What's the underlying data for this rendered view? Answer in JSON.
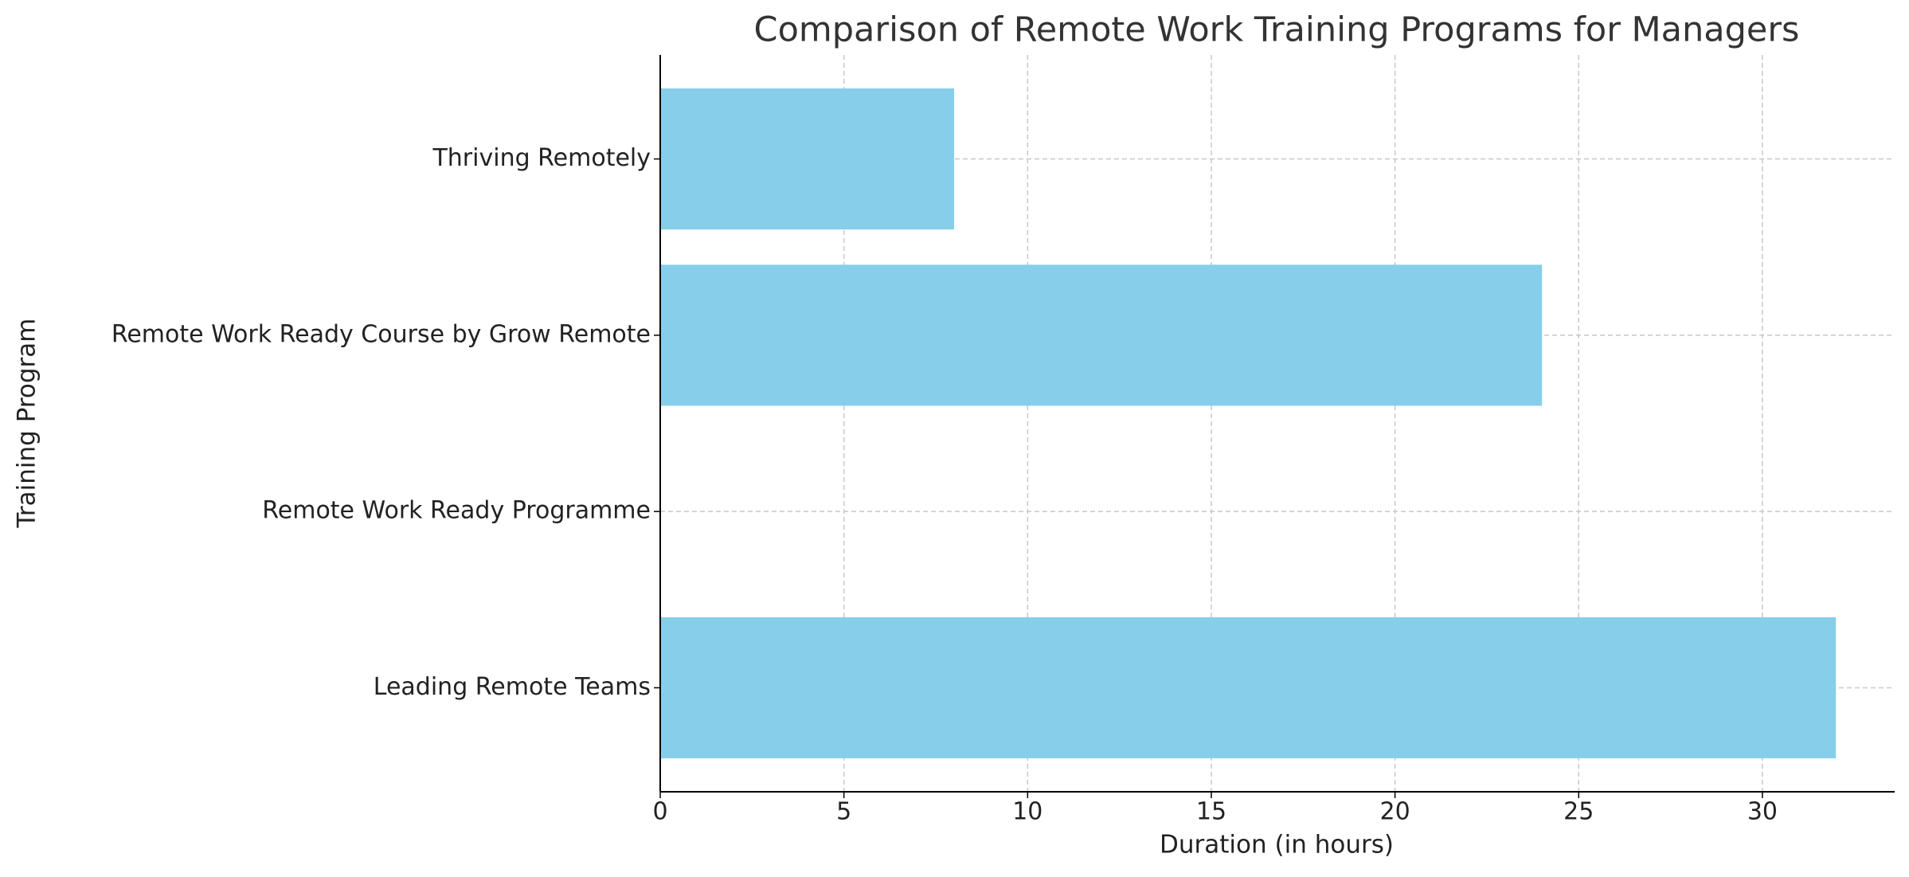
{
  "chart_data": {
    "type": "barh",
    "title": "Comparison of Remote Work Training Programs for Managers",
    "xlabel": "Duration (in hours)",
    "ylabel": "Training Program",
    "categories": [
      "Leading Remote Teams",
      "Remote Work Ready Programme",
      "Remote Work Ready Course by Grow Remote",
      "Thriving Remotely"
    ],
    "values": [
      32,
      0,
      24,
      8
    ],
    "color": "#87ceeb",
    "xlim": [
      0,
      33.6
    ],
    "xticks": [
      0,
      5,
      10,
      15,
      20,
      25,
      30
    ],
    "grid": true
  }
}
